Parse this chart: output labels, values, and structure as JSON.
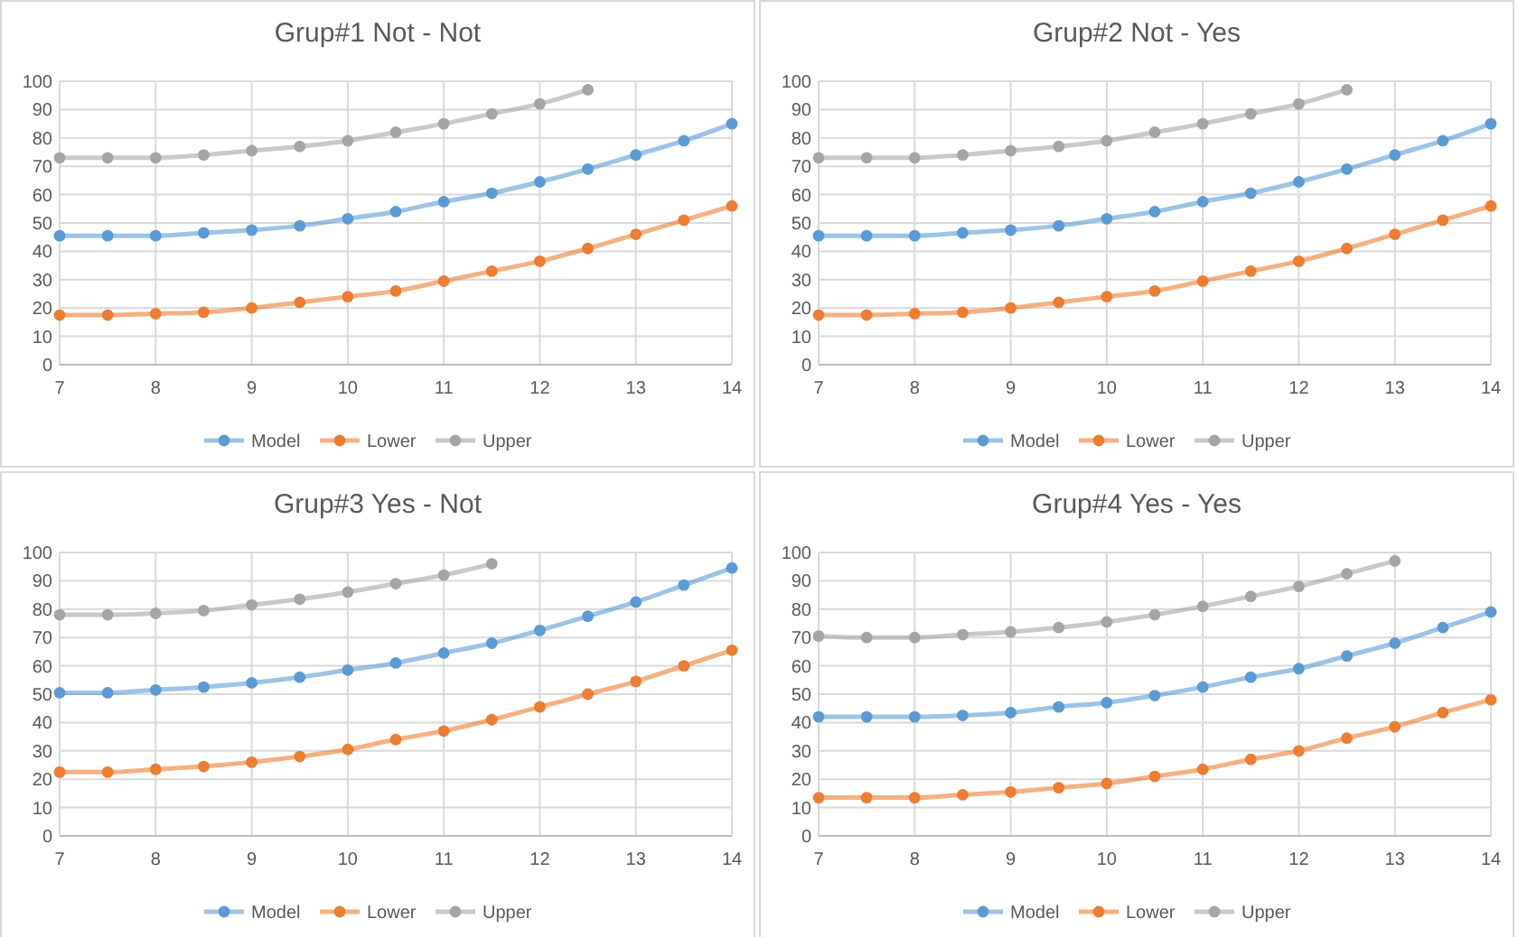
{
  "chart_data": [
    {
      "type": "line",
      "title": "Grup#1 Not - Not",
      "x": [
        7,
        7.5,
        8,
        8.5,
        9,
        9.5,
        10,
        10.5,
        11,
        11.5,
        12,
        12.5,
        13,
        13.5,
        14
      ],
      "xlim": [
        7,
        14
      ],
      "xticks": [
        7,
        8,
        9,
        10,
        11,
        12,
        13,
        14
      ],
      "ylim": [
        0,
        100
      ],
      "yticks": [
        0,
        10,
        20,
        30,
        40,
        50,
        60,
        70,
        80,
        90,
        100
      ],
      "grid": true,
      "legend": "bottom",
      "marker": "circle",
      "line_style": "solid",
      "series": [
        {
          "name": "Model",
          "color": "#5b9bd5",
          "values": [
            45.5,
            45.5,
            45.5,
            46.5,
            47.5,
            49,
            51.5,
            54,
            57.5,
            60.5,
            64.5,
            69,
            74,
            79,
            85
          ]
        },
        {
          "name": "Lower",
          "color": "#ed7d31",
          "values": [
            17.5,
            17.5,
            18,
            18.5,
            20,
            22,
            24,
            26,
            29.5,
            33,
            36.5,
            41,
            46,
            51,
            56
          ]
        },
        {
          "name": "Upper",
          "color": "#a5a5a5",
          "values": [
            73,
            73,
            73,
            74,
            75.5,
            77,
            79,
            82,
            85,
            88.5,
            92,
            97,
            null,
            null,
            null
          ]
        }
      ]
    },
    {
      "type": "line",
      "title": "Grup#2 Not - Yes",
      "x": [
        7,
        7.5,
        8,
        8.5,
        9,
        9.5,
        10,
        10.5,
        11,
        11.5,
        12,
        12.5,
        13,
        13.5,
        14
      ],
      "xlim": [
        7,
        14
      ],
      "xticks": [
        7,
        8,
        9,
        10,
        11,
        12,
        13,
        14
      ],
      "ylim": [
        0,
        100
      ],
      "yticks": [
        0,
        10,
        20,
        30,
        40,
        50,
        60,
        70,
        80,
        90,
        100
      ],
      "grid": true,
      "legend": "bottom",
      "marker": "circle",
      "line_style": "solid",
      "series": [
        {
          "name": "Model",
          "color": "#5b9bd5",
          "values": [
            45.5,
            45.5,
            45.5,
            46.5,
            47.5,
            49,
            51.5,
            54,
            57.5,
            60.5,
            64.5,
            69,
            74,
            79,
            85
          ]
        },
        {
          "name": "Lower",
          "color": "#ed7d31",
          "values": [
            17.5,
            17.5,
            18,
            18.5,
            20,
            22,
            24,
            26,
            29.5,
            33,
            36.5,
            41,
            46,
            51,
            56
          ]
        },
        {
          "name": "Upper",
          "color": "#a5a5a5",
          "values": [
            73,
            73,
            73,
            74,
            75.5,
            77,
            79,
            82,
            85,
            88.5,
            92,
            97,
            null,
            null,
            null
          ]
        }
      ]
    },
    {
      "type": "line",
      "title": "Grup#3 Yes - Not",
      "x": [
        7,
        7.5,
        8,
        8.5,
        9,
        9.5,
        10,
        10.5,
        11,
        11.5,
        12,
        12.5,
        13,
        13.5,
        14
      ],
      "xlim": [
        7,
        14
      ],
      "xticks": [
        7,
        8,
        9,
        10,
        11,
        12,
        13,
        14
      ],
      "ylim": [
        0,
        100
      ],
      "yticks": [
        0,
        10,
        20,
        30,
        40,
        50,
        60,
        70,
        80,
        90,
        100
      ],
      "grid": true,
      "legend": "bottom",
      "marker": "circle",
      "line_style": "solid",
      "series": [
        {
          "name": "Model",
          "color": "#5b9bd5",
          "values": [
            50.5,
            50.5,
            51.5,
            52.5,
            54,
            56,
            58.5,
            61,
            64.5,
            68,
            72.5,
            77.5,
            82.5,
            88.5,
            94.5
          ]
        },
        {
          "name": "Lower",
          "color": "#ed7d31",
          "values": [
            22.5,
            22.5,
            23.5,
            24.5,
            26,
            28,
            30.5,
            34,
            37,
            41,
            45.5,
            50,
            54.5,
            60,
            65.5
          ]
        },
        {
          "name": "Upper",
          "color": "#a5a5a5",
          "values": [
            78,
            78,
            78.5,
            79.5,
            81.5,
            83.5,
            86,
            89,
            92,
            96,
            null,
            null,
            null,
            null,
            null
          ]
        }
      ]
    },
    {
      "type": "line",
      "title": "Grup#4 Yes - Yes",
      "x": [
        7,
        7.5,
        8,
        8.5,
        9,
        9.5,
        10,
        10.5,
        11,
        11.5,
        12,
        12.5,
        13,
        13.5,
        14
      ],
      "xlim": [
        7,
        14
      ],
      "xticks": [
        7,
        8,
        9,
        10,
        11,
        12,
        13,
        14
      ],
      "ylim": [
        0,
        100
      ],
      "yticks": [
        0,
        10,
        20,
        30,
        40,
        50,
        60,
        70,
        80,
        90,
        100
      ],
      "grid": true,
      "legend": "bottom",
      "marker": "circle",
      "line_style": "solid",
      "series": [
        {
          "name": "Model",
          "color": "#5b9bd5",
          "values": [
            42,
            42,
            42,
            42.5,
            43.5,
            45.5,
            47,
            49.5,
            52.5,
            56,
            59,
            63.5,
            68,
            73.5,
            79
          ]
        },
        {
          "name": "Lower",
          "color": "#ed7d31",
          "values": [
            13.5,
            13.5,
            13.5,
            14.5,
            15.5,
            17,
            18.5,
            21,
            23.5,
            27,
            30,
            34.5,
            38.5,
            43.5,
            48
          ]
        },
        {
          "name": "Upper",
          "color": "#a5a5a5",
          "values": [
            70.5,
            70,
            70,
            71,
            72,
            73.5,
            75.5,
            78,
            81,
            84.5,
            88,
            92.5,
            97,
            null,
            null
          ]
        }
      ]
    }
  ]
}
